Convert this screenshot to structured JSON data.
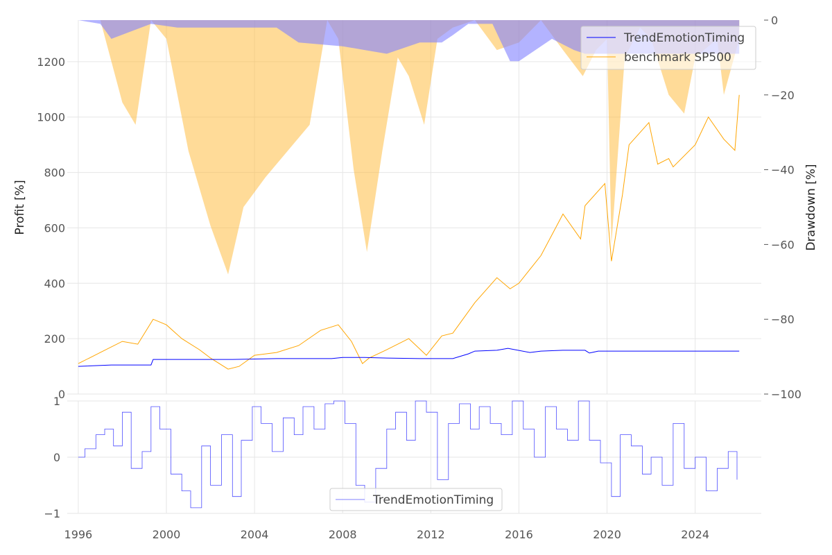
{
  "chart_data": [
    {
      "type": "line",
      "panel": "main",
      "ylabel": "Profit [%]",
      "ylim": [
        0,
        1350
      ],
      "yticks": [
        0,
        200,
        400,
        600,
        800,
        1000,
        1200
      ],
      "xlim": [
        1995.5,
        2027.0
      ],
      "xticks": [
        1996,
        2000,
        2004,
        2008,
        2012,
        2016,
        2020,
        2024
      ],
      "series": [
        {
          "name": "TrendEmotionTiming",
          "color": "#0000ff",
          "x": [
            1996.0,
            1997.5,
            1999.3,
            1999.4,
            2001.5,
            2003.0,
            2005.0,
            2006.5,
            2007.5,
            2008.0,
            2009.0,
            2010.0,
            2011.5,
            2013.0,
            2013.7,
            2014.0,
            2015.0,
            2015.5,
            2016.5,
            2017.0,
            2018.0,
            2019.0,
            2019.2,
            2019.6,
            2022.0,
            2026.0
          ],
          "values": [
            100,
            105,
            105,
            125,
            125,
            125,
            128,
            128,
            128,
            132,
            132,
            130,
            128,
            128,
            145,
            155,
            158,
            165,
            150,
            155,
            158,
            158,
            148,
            155,
            155,
            155
          ]
        },
        {
          "name": "benchmark SP500",
          "color": "#ffa500",
          "x": [
            1996.0,
            1997.0,
            1998.0,
            1998.7,
            1999.4,
            2000.0,
            2000.7,
            2001.5,
            2002.0,
            2002.8,
            2003.3,
            2004.0,
            2005.0,
            2006.0,
            2007.0,
            2007.8,
            2008.4,
            2008.9,
            2009.2,
            2010.0,
            2011.0,
            2011.8,
            2012.5,
            2013.0,
            2014.0,
            2015.0,
            2015.6,
            2016.0,
            2017.0,
            2018.0,
            2018.8,
            2019.0,
            2019.9,
            2020.2,
            2020.7,
            2021.0,
            2021.9,
            2022.3,
            2022.8,
            2023.0,
            2024.0,
            2024.6,
            2025.3,
            2025.8,
            2026.0
          ],
          "values": [
            110,
            150,
            190,
            180,
            270,
            250,
            200,
            160,
            130,
            90,
            100,
            140,
            150,
            175,
            230,
            250,
            190,
            110,
            130,
            160,
            200,
            140,
            210,
            220,
            330,
            420,
            380,
            400,
            500,
            650,
            560,
            680,
            760,
            480,
            720,
            900,
            980,
            830,
            850,
            820,
            900,
            1000,
            920,
            880,
            1080
          ]
        }
      ]
    },
    {
      "type": "area",
      "panel": "drawdown",
      "ylabel": "Drawdown [%]",
      "ylim": [
        -100,
        0
      ],
      "yticks": [
        0,
        -20,
        -40,
        -60,
        -80,
        -100
      ],
      "ytick_labels": [
        "0",
        "−20",
        "−40",
        "−60",
        "−80",
        "−100"
      ],
      "series": [
        {
          "name": "benchmark SP500 drawdown",
          "color": "#ffb732",
          "x": [
            1996.0,
            1997.0,
            1998.0,
            1998.6,
            1999.3,
            2000.0,
            2001.0,
            2002.0,
            2002.8,
            2003.5,
            2004.5,
            2005.5,
            2006.5,
            2007.3,
            2007.8,
            2008.5,
            2009.1,
            2009.8,
            2010.5,
            2011.0,
            2011.7,
            2012.3,
            2013.0,
            2014.0,
            2015.0,
            2016.0,
            2017.0,
            2018.0,
            2018.9,
            2019.5,
            2020.0,
            2020.2,
            2020.8,
            2021.5,
            2022.0,
            2022.8,
            2023.5,
            2024.0,
            2025.0,
            2025.3,
            2026.0
          ],
          "values": [
            0,
            0,
            -22,
            -28,
            0,
            -5,
            -35,
            -55,
            -68,
            -50,
            -42,
            -35,
            -28,
            0,
            -5,
            -40,
            -62,
            -35,
            -10,
            -15,
            -28,
            -5,
            -2,
            0,
            -8,
            -6,
            0,
            -8,
            -15,
            -8,
            -5,
            -60,
            -10,
            -2,
            -5,
            -20,
            -25,
            -10,
            -5,
            -20,
            -5
          ]
        },
        {
          "name": "TrendEmotionTiming drawdown",
          "color": "#8080ff",
          "x": [
            1996.0,
            1997.0,
            1997.5,
            1999.3,
            2000.5,
            2001.0,
            2002.0,
            2005.0,
            2006.0,
            2008.0,
            2009.0,
            2010.0,
            2011.5,
            2012.5,
            2013.0,
            2013.7,
            2014.0,
            2014.8,
            2015.6,
            2016.0,
            2016.5,
            2017.5,
            2018.5,
            2019.0,
            2019.6,
            2020.5,
            2022.0,
            2026.0
          ],
          "values": [
            0,
            -1,
            -5,
            -1,
            -2,
            -2,
            -2,
            -2,
            -6,
            -7,
            -8,
            -9,
            -6,
            -6,
            -4,
            -1,
            -1,
            -1,
            -11,
            -11,
            -9,
            -5,
            -8,
            -9,
            -9,
            -9,
            -9,
            -9
          ]
        }
      ]
    },
    {
      "type": "line",
      "panel": "signal",
      "ylim": [
        -1,
        1
      ],
      "yticks": [
        1,
        0,
        -1
      ],
      "ytick_labels": [
        "1",
        "0",
        "−1"
      ],
      "series": [
        {
          "name": "TrendEmotionTiming",
          "color": "#0000ff",
          "x": [
            1996.0,
            1996.3,
            1996.8,
            1997.2,
            1997.6,
            1998.0,
            1998.4,
            1998.9,
            1999.3,
            1999.7,
            2000.2,
            2000.7,
            2001.1,
            2001.6,
            2002.0,
            2002.5,
            2003.0,
            2003.4,
            2003.9,
            2004.3,
            2004.8,
            2005.3,
            2005.8,
            2006.2,
            2006.7,
            2007.2,
            2007.6,
            2008.1,
            2008.6,
            2009.0,
            2009.5,
            2010.0,
            2010.4,
            2010.9,
            2011.3,
            2011.8,
            2012.3,
            2012.8,
            2013.3,
            2013.8,
            2014.2,
            2014.7,
            2015.2,
            2015.7,
            2016.2,
            2016.7,
            2017.2,
            2017.7,
            2018.2,
            2018.7,
            2019.2,
            2019.7,
            2020.2,
            2020.6,
            2021.1,
            2021.6,
            2022.0,
            2022.5,
            2023.0,
            2023.5,
            2024.0,
            2024.5,
            2025.0,
            2025.5,
            2025.9
          ],
          "values": [
            0,
            0.15,
            0.4,
            0.5,
            0.2,
            0.8,
            -0.2,
            0.1,
            0.9,
            0.5,
            -0.3,
            -0.6,
            -0.9,
            0.2,
            -0.5,
            0.4,
            -0.7,
            0.3,
            0.9,
            0.6,
            0.1,
            0.7,
            0.4,
            0.9,
            0.5,
            0.95,
            1.0,
            0.6,
            -0.5,
            -0.8,
            -0.2,
            0.5,
            0.8,
            0.3,
            1.0,
            0.8,
            -0.4,
            0.6,
            0.95,
            0.5,
            0.9,
            0.6,
            0.4,
            1.0,
            0.5,
            0.0,
            0.9,
            0.5,
            0.3,
            1.0,
            0.3,
            -0.1,
            -0.7,
            0.4,
            0.2,
            -0.3,
            0.0,
            -0.5,
            0.6,
            -0.2,
            0.0,
            -0.6,
            -0.2,
            0.1,
            -0.4
          ]
        }
      ]
    }
  ],
  "legend_main": [
    "TrendEmotionTiming",
    "benchmark SP500"
  ],
  "legend_signal": [
    "TrendEmotionTiming"
  ]
}
